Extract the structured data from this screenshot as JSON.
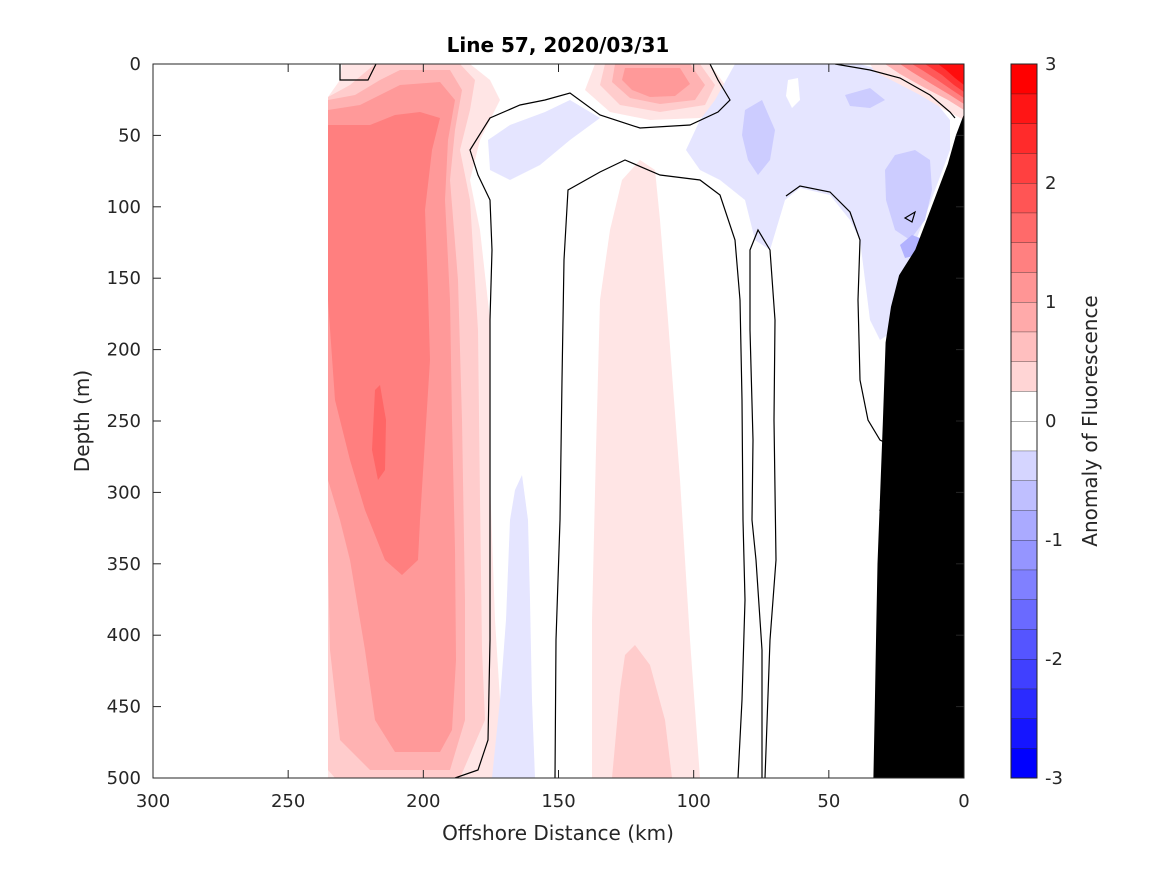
{
  "chart_data": {
    "type": "heatmap",
    "subtype": "filled-contour",
    "title": "Line 57, 2020/03/31",
    "xlabel": "Offshore Distance (km)",
    "ylabel": "Depth (m)",
    "colorbar_label": "Anomaly of Fluorescence",
    "xlim": [
      300,
      0
    ],
    "ylim": [
      500,
      0
    ],
    "x_reversed": true,
    "y_reversed": true,
    "x_ticks": [
      "300",
      "250",
      "200",
      "150",
      "100",
      "50",
      "0"
    ],
    "y_ticks": [
      "0",
      "50",
      "100",
      "150",
      "200",
      "250",
      "300",
      "350",
      "400",
      "450",
      "500"
    ],
    "colorbar_ticks": [
      "3",
      "2",
      "1",
      "0",
      "-1",
      "-2",
      "-3"
    ],
    "colorbar_range": [
      -3,
      3
    ],
    "colorbar_step": 0.25,
    "colormap": {
      "negative": "#0000ff",
      "zero": "#ffffff",
      "positive": "#ff0000"
    },
    "grid": false,
    "data_extent_x": [
      235,
      0
    ],
    "contour_lines": [
      0
    ],
    "bathymetry": {
      "color": "#000000",
      "outline_km_depth_m": [
        [
          0,
          35
        ],
        [
          3,
          50
        ],
        [
          6,
          70
        ],
        [
          10,
          90
        ],
        [
          14,
          110
        ],
        [
          18,
          130
        ],
        [
          24,
          148
        ],
        [
          27,
          170
        ],
        [
          29,
          195
        ],
        [
          30,
          250
        ],
        [
          31,
          300
        ],
        [
          32,
          350
        ],
        [
          32.5,
          400
        ],
        [
          33,
          450
        ],
        [
          33.5,
          500
        ]
      ]
    },
    "features": [
      {
        "label": "positive-anomaly-band",
        "x_range_km": [
          235,
          175
        ],
        "depth_range_m": [
          0,
          500
        ],
        "peak_value": 1.5,
        "peak_at": [
          210,
          270
        ]
      },
      {
        "label": "positive-near-surface-patch",
        "x_range_km": [
          135,
          95
        ],
        "depth_range_m": [
          0,
          50
        ],
        "peak_value": 1.0,
        "peak_at": [
          115,
          12
        ]
      },
      {
        "label": "positive-mid-column",
        "x_range_km": [
          145,
          100
        ],
        "depth_range_m": [
          100,
          500
        ],
        "peak_value": 0.5,
        "peak_at": [
          120,
          470
        ]
      },
      {
        "label": "positive-coastal-surface",
        "x_range_km": [
          35,
          0
        ],
        "depth_range_m": [
          0,
          35
        ],
        "peak_value": 3.0,
        "peak_at": [
          3,
          5
        ]
      },
      {
        "label": "negative-nearshore",
        "x_range_km": [
          90,
          20
        ],
        "depth_range_m": [
          0,
          220
        ],
        "peak_value": -0.75,
        "peak_at": [
          25,
          130
        ]
      },
      {
        "label": "negative-offshore-thin",
        "x_range_km": [
          175,
          150
        ],
        "depth_range_m": [
          280,
          500
        ],
        "peak_value": -0.25,
        "peak_at": [
          162,
          420
        ]
      }
    ]
  }
}
